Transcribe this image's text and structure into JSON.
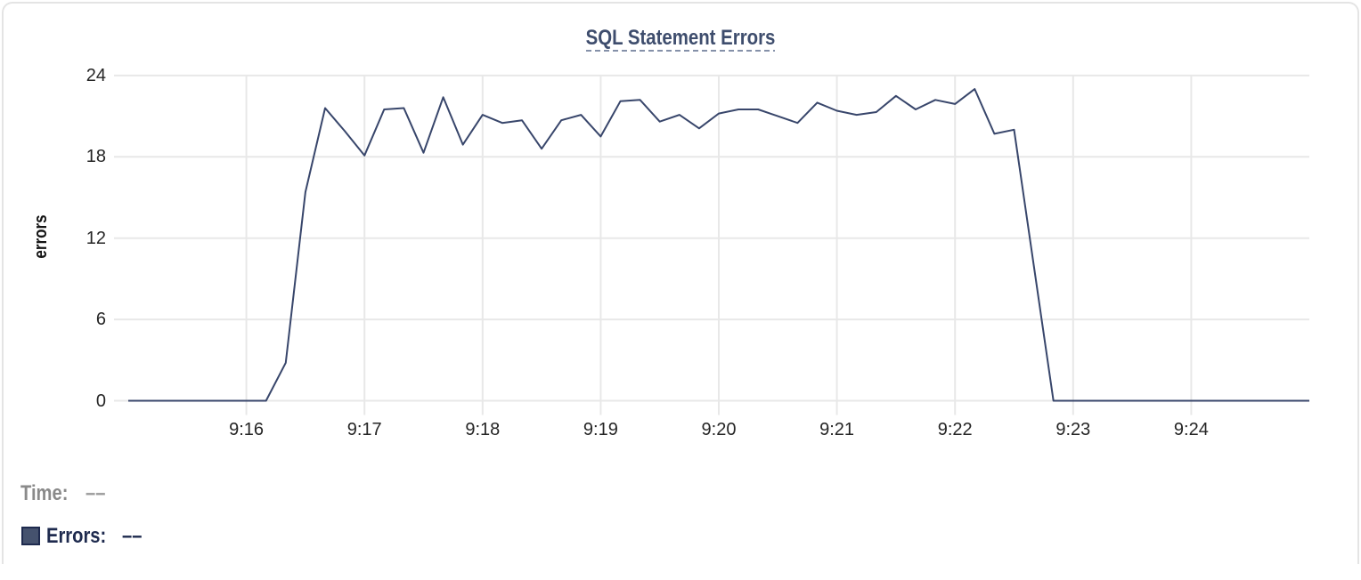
{
  "card": {
    "border_color": "#e4e4e4",
    "background": "#ffffff"
  },
  "title": {
    "text": "SQL Statement Errors",
    "color": "#3e4d6d",
    "underline_color": "#8591a9",
    "underline_style": "dashed"
  },
  "legend": {
    "time_label": "Time:",
    "time_value": "––",
    "time_color": "#8a8a8a",
    "errors_label": "Errors:",
    "errors_value": "––",
    "errors_color": "#1e2a4e",
    "swatch_fill": "#45526e",
    "swatch_border": "#1e2a4e"
  },
  "chart_data": {
    "type": "line",
    "title": "SQL Statement Errors",
    "xlabel": "",
    "ylabel": "errors",
    "line_color": "#38466b",
    "grid_color": "#e8e8e8",
    "tick_label_color": "#252525",
    "grid": true,
    "legend_position": "bottom-left",
    "ylim": [
      0,
      24
    ],
    "y_ticks": [
      0,
      6,
      12,
      18,
      24
    ],
    "x_tick_labels": [
      "9:16",
      "9:17",
      "9:18",
      "9:19",
      "9:20",
      "9:21",
      "9:22",
      "9:23",
      "9:24"
    ],
    "x_tick_seconds": [
      60,
      120,
      180,
      240,
      300,
      360,
      420,
      480,
      540
    ],
    "x_range_seconds": [
      0,
      600
    ],
    "x_start_time": "9:15:00",
    "x_end_time": "9:25:00",
    "sample_interval_seconds": 10,
    "series": [
      {
        "name": "Errors",
        "times": [
          "9:15:00",
          "9:15:10",
          "9:15:20",
          "9:15:30",
          "9:15:40",
          "9:15:50",
          "9:16:00",
          "9:16:10",
          "9:16:20",
          "9:16:30",
          "9:16:40",
          "9:16:50",
          "9:17:00",
          "9:17:10",
          "9:17:20",
          "9:17:30",
          "9:17:40",
          "9:17:50",
          "9:18:00",
          "9:18:10",
          "9:18:20",
          "9:18:30",
          "9:18:40",
          "9:18:50",
          "9:19:00",
          "9:19:10",
          "9:19:20",
          "9:19:30",
          "9:19:40",
          "9:19:50",
          "9:20:00",
          "9:20:10",
          "9:20:20",
          "9:20:30",
          "9:20:40",
          "9:20:50",
          "9:21:00",
          "9:21:10",
          "9:21:20",
          "9:21:30",
          "9:21:40",
          "9:21:50",
          "9:22:00",
          "9:22:10",
          "9:22:20",
          "9:22:30",
          "9:22:40",
          "9:22:50",
          "9:23:00",
          "9:23:10",
          "9:23:20",
          "9:23:30",
          "9:23:40",
          "9:23:50",
          "9:24:00",
          "9:24:10",
          "9:24:20",
          "9:24:30",
          "9:24:40",
          "9:24:50",
          "9:25:00"
        ],
        "values": [
          0,
          0,
          0,
          0,
          0,
          0,
          0,
          0,
          2.8,
          15.4,
          21.6,
          19.9,
          18.1,
          21.5,
          21.6,
          18.3,
          22.4,
          18.9,
          21.1,
          20.5,
          20.7,
          18.6,
          20.7,
          21.1,
          19.5,
          22.1,
          22.2,
          20.6,
          21.1,
          20.1,
          21.2,
          21.5,
          21.5,
          21.0,
          20.5,
          22.0,
          21.4,
          21.1,
          21.3,
          22.5,
          21.5,
          22.2,
          21.9,
          23.0,
          19.7,
          20.0,
          10.0,
          0,
          0,
          0,
          0,
          0,
          0,
          0,
          0,
          0,
          0,
          0,
          0,
          0,
          0
        ]
      }
    ]
  }
}
